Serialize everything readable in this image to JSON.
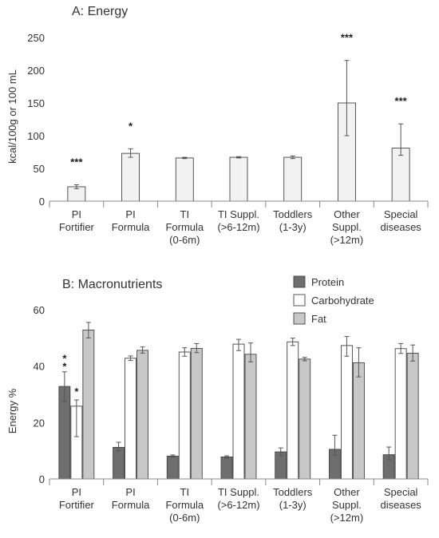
{
  "chart_data": [
    {
      "type": "bar",
      "title": "A: Energy",
      "ylabel": "kcal/100g or 100 mL",
      "xlabel": "",
      "ylim": [
        0,
        250
      ],
      "yticks": [
        0,
        50,
        100,
        150,
        200,
        250
      ],
      "grid": false,
      "categories": [
        [
          "PI",
          "Fortifier"
        ],
        [
          "PI",
          "Formula"
        ],
        [
          "TI",
          "Formula",
          "(0-6m)"
        ],
        [
          "TI Suppl.",
          "(>6-12m)"
        ],
        [
          "Toddlers",
          "(1-3y)"
        ],
        [
          "Other",
          "Suppl.",
          "(>12m)"
        ],
        [
          "Special",
          "diseases"
        ]
      ],
      "series": [
        {
          "color": "#f2f2f2",
          "values": [
            22,
            73,
            66,
            67,
            67,
            150,
            81
          ],
          "error_low": [
            19,
            67,
            65,
            66,
            65,
            100,
            70
          ],
          "error_high": [
            25,
            80,
            67,
            68,
            69,
            215,
            118
          ],
          "significance": [
            "***",
            "*",
            "",
            "",
            "",
            "***",
            "***"
          ]
        }
      ]
    },
    {
      "type": "bar",
      "title": "B: Macronutrients",
      "ylabel": "Energy %",
      "xlabel": "",
      "ylim": [
        0,
        60
      ],
      "yticks": [
        0,
        20,
        40,
        60
      ],
      "grid": false,
      "legend_position": "top-right",
      "categories": [
        [
          "PI",
          "Fortifier"
        ],
        [
          "PI",
          "Formula"
        ],
        [
          "TI",
          "Formula",
          "(0-6m)"
        ],
        [
          "TI Suppl.",
          "(>6-12m)"
        ],
        [
          "Toddlers",
          "(1-3y)"
        ],
        [
          "Other",
          "Suppl.",
          "(>12m)"
        ],
        [
          "Special",
          "diseases"
        ]
      ],
      "series": [
        {
          "name": "Protein",
          "color": "#6e6e6e",
          "values": [
            32.8,
            11.2,
            8.1,
            7.8,
            9.6,
            10.5,
            8.6
          ],
          "error_low": [
            27.5,
            10.0,
            7.7,
            7.4,
            8.3,
            8.5,
            6.8
          ],
          "error_high": [
            38.0,
            13.0,
            8.5,
            8.2,
            11.0,
            15.5,
            11.3
          ],
          "significance": [
            "**",
            "",
            "",
            "",
            "",
            "",
            ""
          ]
        },
        {
          "name": "Carbohydrate",
          "color": "#ffffff",
          "values": [
            25.8,
            42.8,
            45.0,
            47.8,
            48.6,
            47.3,
            46.2
          ],
          "error_low": [
            15.0,
            42.0,
            43.5,
            45.5,
            47.3,
            43.5,
            44.5
          ],
          "error_high": [
            28.0,
            43.6,
            46.5,
            49.5,
            49.9,
            50.5,
            48.0
          ],
          "significance": [
            "*",
            "",
            "",
            "",
            "",
            "",
            ""
          ]
        },
        {
          "name": "Fat",
          "color": "#c8c8c8",
          "values": [
            52.8,
            45.6,
            46.3,
            44.2,
            42.5,
            41.2,
            44.6
          ],
          "error_low": [
            50.0,
            44.6,
            44.8,
            41.5,
            41.9,
            36.2,
            41.8
          ],
          "error_high": [
            55.5,
            46.8,
            48.0,
            48.2,
            43.1,
            46.5,
            47.5
          ],
          "significance": [
            "",
            "",
            "",
            "",
            "",
            "",
            ""
          ]
        }
      ]
    }
  ]
}
